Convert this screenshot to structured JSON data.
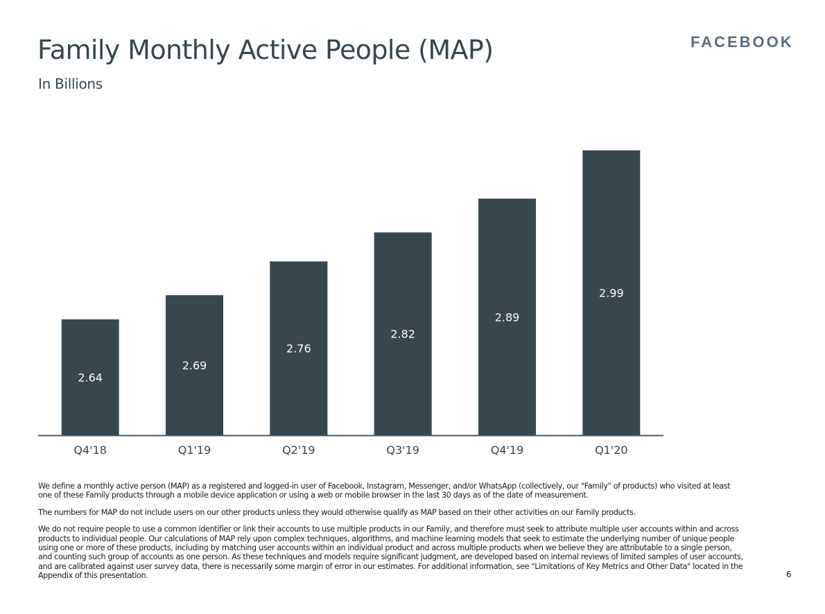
{
  "slide": {
    "title": "Family Monthly Active People (MAP)",
    "subtitle": "In Billions",
    "brand": "FACEBOOK",
    "page_number": "6",
    "footnotes": [
      "We define a monthly active person (MAP) as a registered and logged-in user of Facebook, Instagram, Messenger, and/or WhatsApp (collectively, our \"Family\" of products) who visited at least one of these Family products through a mobile device application or using a web or mobile browser in the last 30 days as of the date of measurement.",
      "The numbers for MAP do not include users on our other products unless they would otherwise qualify as MAP based on their other activities on our Family products.",
      "We do not require people to use a common identifier or link their accounts to use multiple products in our Family, and therefore must seek to attribute multiple user accounts within and across products to individual people. Our calculations of MAP rely upon complex techniques, algorithms, and machine learning models that seek to estimate the underlying number of unique people using one or more of these products, including by matching user accounts within an individual product and across multiple products when we believe they are attributable to a single person, and counting such group of accounts as one person. As these techniques and models require significant judgment, are developed based on internal reviews of limited samples of user accounts, and are calibrated against user survey data, there is necessarily some margin of error in our estimates. For additional information, see \"Limitations of Key Metrics and Other Data\" located in the Appendix of this presentation."
    ]
  },
  "chart_data": {
    "type": "bar",
    "title": "Family Monthly Active People (MAP)",
    "subtitle": "In Billions",
    "xlabel": "",
    "ylabel": "",
    "categories": [
      "Q4'18",
      "Q1'19",
      "Q2'19",
      "Q3'19",
      "Q4'19",
      "Q1'20"
    ],
    "values": [
      2.64,
      2.69,
      2.76,
      2.82,
      2.89,
      2.99
    ],
    "value_labels": [
      "2.64",
      "2.69",
      "2.76",
      "2.82",
      "2.89",
      "2.99"
    ],
    "ylim": [
      2.4,
      3.0
    ],
    "grid": false,
    "legend": "none",
    "colors": {
      "bar": "#36474f",
      "axis": "#4a5a62",
      "bar_label": "#ffffff",
      "tick_label": "#34474f"
    }
  }
}
